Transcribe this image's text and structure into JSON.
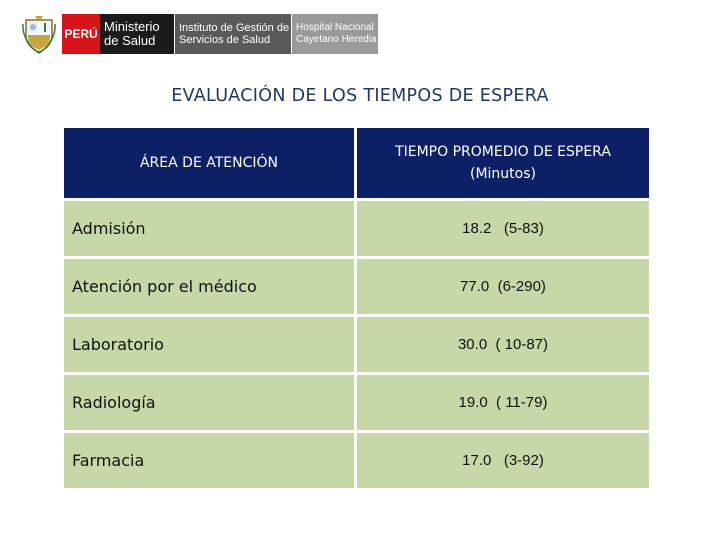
{
  "header": {
    "peru": "PERÚ",
    "ministerio_line1": "Ministerio",
    "ministerio_line2": "de Salud",
    "instituto_line1": "Instituto de Gestión de",
    "instituto_line2": "Servicios de Salud",
    "hospital_line1": "Hospital Nacional",
    "hospital_line2": "Cayetano Heredia"
  },
  "title": "EVALUACIÓN DE LOS TIEMPOS DE ESPERA",
  "table": {
    "col1_header": "ÁREA DE ATENCIÓN",
    "col2_header_line1": "TIEMPO PROMEDIO DE ESPERA",
    "col2_header_line2": "(Minutos)",
    "rows": [
      {
        "area": "Admisión",
        "time": "18.2   (5-83)"
      },
      {
        "area": "Atención por el médico",
        "time": "77.0  (6-290)"
      },
      {
        "area": "Laboratorio",
        "time": "30.0  ( 10-87)"
      },
      {
        "area": "Radiología",
        "time": "19.0  ( 11-79)"
      },
      {
        "area": "Farmacia",
        "time": "17.0   (3-92)"
      }
    ]
  },
  "colors": {
    "header_bg": "#0d2066",
    "row_bg": "#c7d8a8",
    "title": "#1f3864",
    "peru_red": "#d7141a"
  }
}
